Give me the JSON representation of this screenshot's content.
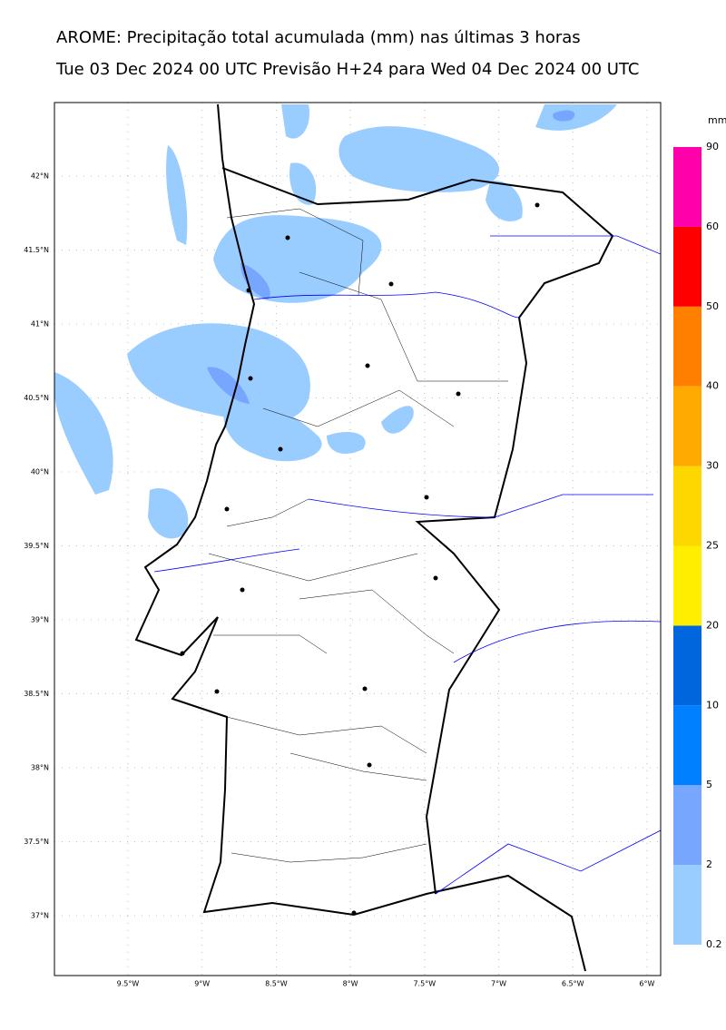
{
  "header": {
    "title": "AROME: Precipitação total acumulada (mm) nas últimas 3 horas",
    "subtitle": "Tue 03 Dec 2024 00 UTC Previsão H+24 para Wed 04 Dec 2024 00 UTC"
  },
  "map": {
    "lat_labels": [
      "42°N",
      "41.5°N",
      "41°N",
      "40.5°N",
      "40°N",
      "39.5°N",
      "39°N",
      "38.5°N",
      "38°N",
      "37.5°N",
      "37°N"
    ],
    "lon_labels": [
      "9.5°W",
      "9°W",
      "8.5°W",
      "8°W",
      "7.5°W",
      "7°W",
      "6.5°W",
      "6°W"
    ]
  },
  "colorbar": {
    "unit": "mm",
    "levels": [
      0.2,
      2,
      5,
      10,
      20,
      25,
      30,
      40,
      50,
      60,
      90
    ],
    "colors": [
      "#99ccff",
      "#77a6ff",
      "#0080ff",
      "#0066dd",
      "#ffee00",
      "#ffd700",
      "#ffaa00",
      "#ff8000",
      "#ff0000",
      "#ff00aa"
    ]
  }
}
